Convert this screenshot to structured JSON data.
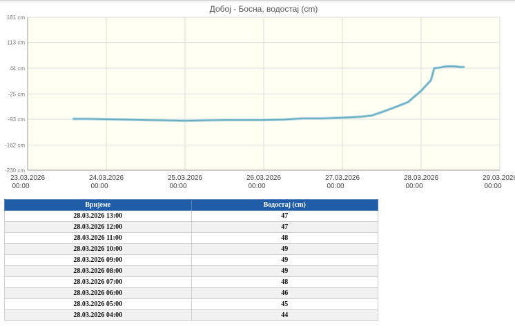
{
  "chart_data": {
    "type": "line",
    "title": "Добој - Босна, водостај (cm)",
    "xlabel": "",
    "ylabel": "",
    "ylim": [
      -230,
      181
    ],
    "xlim": [
      "2026-03-23 00:00",
      "2026-03-29 00:00"
    ],
    "y_ticks": [
      {
        "value": 181,
        "label": "181 cm"
      },
      {
        "value": 113,
        "label": "113 cm"
      },
      {
        "value": 44,
        "label": "44 cm"
      },
      {
        "value": -25,
        "label": "-25 cm"
      },
      {
        "value": -93,
        "label": "-93 cm"
      },
      {
        "value": -162,
        "label": "-162 cm"
      },
      {
        "value": -230,
        "label": "-230 cm"
      }
    ],
    "x_ticks": [
      {
        "date": "23.03.2026",
        "time": "00:00"
      },
      {
        "date": "24.03.2026",
        "time": "00:00"
      },
      {
        "date": "25.03.2026",
        "time": "00:00"
      },
      {
        "date": "26.03.2026",
        "time": "00:00"
      },
      {
        "date": "27.03.2026",
        "time": "00:00"
      },
      {
        "date": "28.03.2026",
        "time": "00:00"
      },
      {
        "date": "29.03.2026",
        "time": "00:00"
      }
    ],
    "grid": true,
    "series": [
      {
        "color": "#6aaec4",
        "points": [
          [
            "2026-03-23 14:00",
            -92
          ],
          [
            "2026-03-23 18:00",
            -92
          ],
          [
            "2026-03-24 00:00",
            -93
          ],
          [
            "2026-03-24 06:00",
            -94
          ],
          [
            "2026-03-24 12:00",
            -95
          ],
          [
            "2026-03-24 18:00",
            -96
          ],
          [
            "2026-03-25 00:00",
            -97
          ],
          [
            "2026-03-25 06:00",
            -96
          ],
          [
            "2026-03-25 12:00",
            -95
          ],
          [
            "2026-03-25 18:00",
            -95
          ],
          [
            "2026-03-26 00:00",
            -95
          ],
          [
            "2026-03-26 06:00",
            -94
          ],
          [
            "2026-03-26 12:00",
            -91
          ],
          [
            "2026-03-26 18:00",
            -91
          ],
          [
            "2026-03-27 00:00",
            -89
          ],
          [
            "2026-03-27 06:00",
            -86
          ],
          [
            "2026-03-27 09:00",
            -83
          ],
          [
            "2026-03-27 12:00",
            -74
          ],
          [
            "2026-03-27 16:00",
            -61
          ],
          [
            "2026-03-27 20:00",
            -47
          ],
          [
            "2026-03-28 00:00",
            -17
          ],
          [
            "2026-03-28 03:00",
            12
          ],
          [
            "2026-03-28 04:00",
            44
          ],
          [
            "2026-03-28 05:00",
            45
          ],
          [
            "2026-03-28 06:00",
            46
          ],
          [
            "2026-03-28 07:00",
            48
          ],
          [
            "2026-03-28 08:00",
            49
          ],
          [
            "2026-03-28 09:00",
            49
          ],
          [
            "2026-03-28 10:00",
            49
          ],
          [
            "2026-03-28 11:00",
            48
          ],
          [
            "2026-03-28 12:00",
            47
          ],
          [
            "2026-03-28 13:00",
            47
          ]
        ]
      }
    ]
  },
  "table": {
    "columns": [
      "Вријеме",
      "Водостај (cm)"
    ],
    "rows": [
      [
        "28.03.2026 13:00",
        "47"
      ],
      [
        "28.03.2026 12:00",
        "47"
      ],
      [
        "28.03.2026 11:00",
        "48"
      ],
      [
        "28.03.2026 10:00",
        "49"
      ],
      [
        "28.03.2026 09:00",
        "49"
      ],
      [
        "28.03.2026 08:00",
        "49"
      ],
      [
        "28.03.2026 07:00",
        "48"
      ],
      [
        "28.03.2026 06:00",
        "46"
      ],
      [
        "28.03.2026 05:00",
        "45"
      ],
      [
        "28.03.2026 04:00",
        "44"
      ]
    ]
  },
  "colors": {
    "plot_background": "#fffff2",
    "grid": "#dddddd",
    "table_header": "#1f5da8"
  }
}
